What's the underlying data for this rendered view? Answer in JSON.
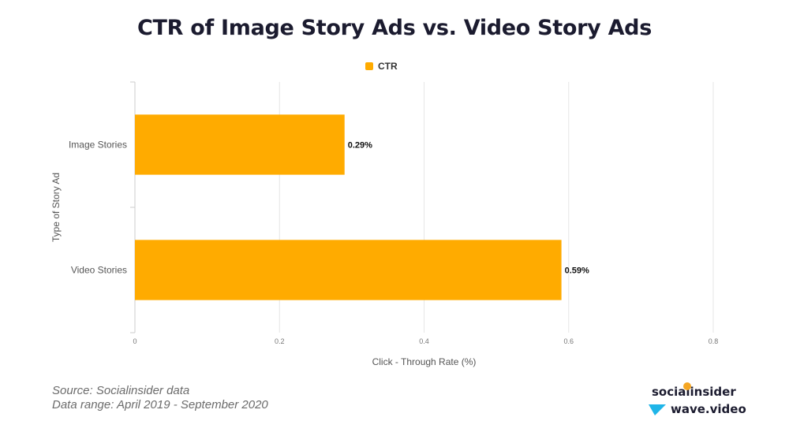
{
  "title": "CTR of Image Story Ads vs. Video Story Ads",
  "legend": {
    "label": "CTR",
    "color": "#FFAB00"
  },
  "chart_data": {
    "type": "bar",
    "orientation": "horizontal",
    "categories": [
      "Image Stories",
      "Video Stories"
    ],
    "series": [
      {
        "name": "CTR",
        "values": [
          0.29,
          0.59
        ],
        "color": "#FFAB00"
      }
    ],
    "data_labels": [
      "0.29%",
      "0.59%"
    ],
    "xlabel": "Click - Through Rate (%)",
    "ylabel": "Type of Story Ad",
    "xlim": [
      0,
      0.8
    ],
    "xticks": [
      "0",
      "0.2",
      "0.4",
      "0.6",
      "0.8"
    ],
    "grid": true,
    "legend_position": "top"
  },
  "footer": {
    "source": "Source: Socialinsider data",
    "range": "Data range: April 2019 - September 2020"
  },
  "brands": {
    "socialinsider": "socialinsider",
    "wave": "wave.video",
    "accent": "#F5A623",
    "wave_color": "#1FB5E8"
  }
}
